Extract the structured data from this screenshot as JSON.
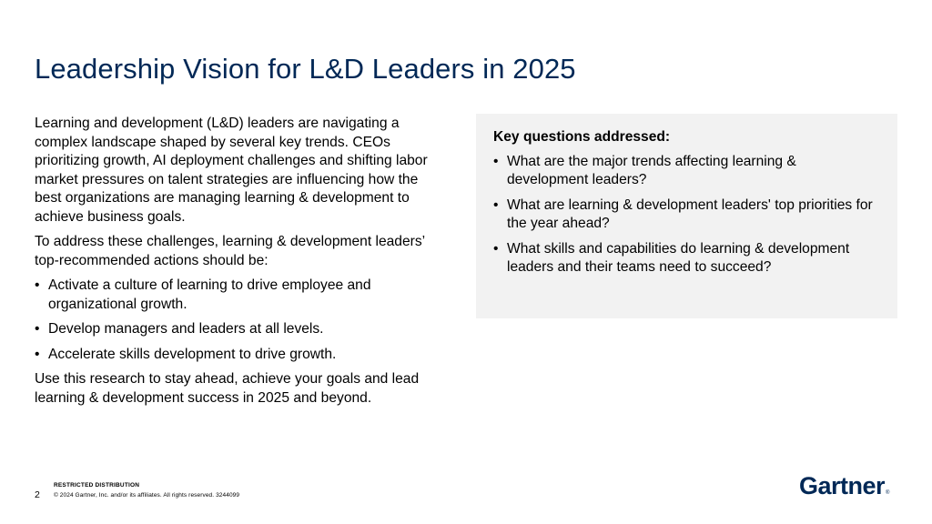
{
  "title": "Leadership Vision for L&D Leaders in 2025",
  "left": {
    "intro": "Learning and development (L&D) leaders are navigating a complex landscape shaped by several key trends. CEOs prioritizing growth, AI deployment challenges and shifting labor market pressures on talent strategies are influencing how the best organizations are managing learning & development to achieve business goals.",
    "lead_in": "To address these challenges, learning & development leaders’ top-recommended actions should be:",
    "actions": [
      "Activate a culture of learning to drive employee and organizational growth.",
      "Develop managers and leaders at all levels.",
      "Accelerate skills development to drive growth."
    ],
    "closing": "Use this research to stay ahead, achieve your goals and lead learning & development success in 2025 and beyond."
  },
  "panel": {
    "heading": "Key questions addressed:",
    "questions": [
      "What are the major trends affecting learning & development leaders?",
      "What are learning & development leaders' top priorities for the year ahead?",
      "What skills and capabilities do learning & development leaders and their teams need to succeed?"
    ]
  },
  "footer": {
    "page_number": "2",
    "restricted": "RESTRICTED DISTRIBUTION",
    "copyright": "© 2024 Gartner, Inc. and/or its affiliates. All rights reserved. 3244099"
  },
  "logo": {
    "text": "Gartner",
    "mark": "®"
  },
  "bullet_glyph": "•",
  "colors": {
    "title": "#002856",
    "panel_bg": "#f2f2f2",
    "logo": "#002856"
  }
}
